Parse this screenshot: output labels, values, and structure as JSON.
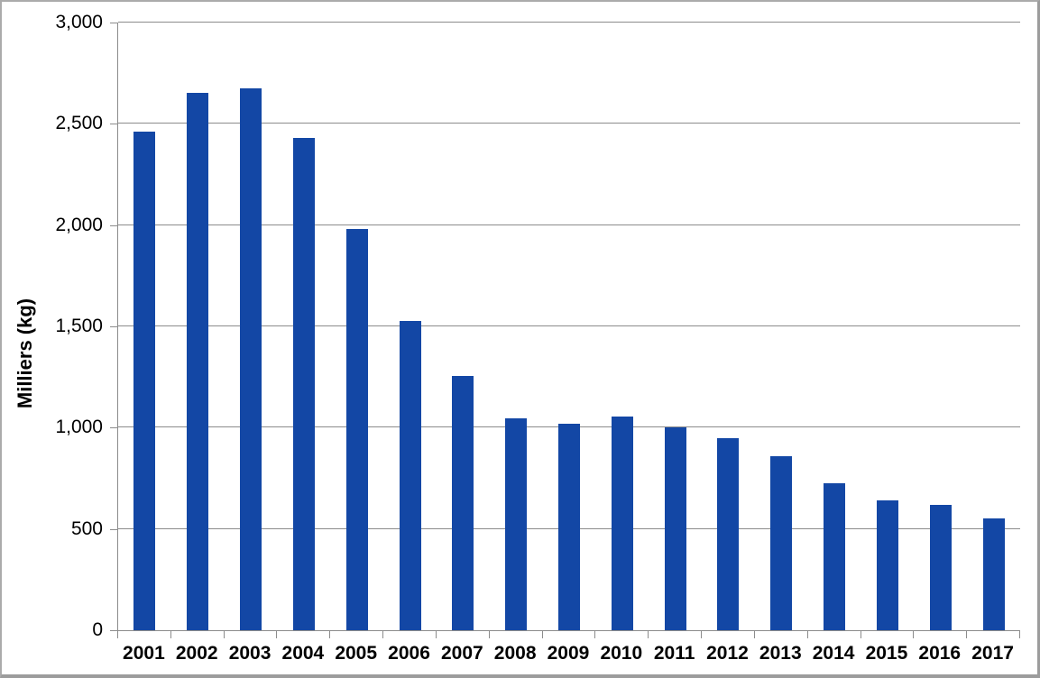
{
  "chart_data": {
    "type": "bar",
    "title": "",
    "xlabel": "",
    "ylabel": "Milliers (kg)",
    "categories": [
      "2001",
      "2002",
      "2003",
      "2004",
      "2005",
      "2006",
      "2007",
      "2008",
      "2009",
      "2010",
      "2011",
      "2012",
      "2013",
      "2014",
      "2015",
      "2016",
      "2017"
    ],
    "values": [
      2460,
      2655,
      2675,
      2430,
      1980,
      1525,
      1255,
      1045,
      1020,
      1055,
      1000,
      950,
      860,
      725,
      640,
      620,
      550
    ],
    "ylim": [
      0,
      3000
    ],
    "ytick_step": 500,
    "ytick_labels": [
      "0",
      "500",
      "1,000",
      "1,500",
      "2,000",
      "2,500",
      "3,000"
    ],
    "grid": true,
    "legend": false,
    "colors": {
      "bar": "#1347A5",
      "gridline": "#8c8c8c",
      "axis": "#8c8c8c",
      "text": "#000000",
      "background": "#ffffff",
      "frame_border": "#9c9c9c"
    }
  }
}
